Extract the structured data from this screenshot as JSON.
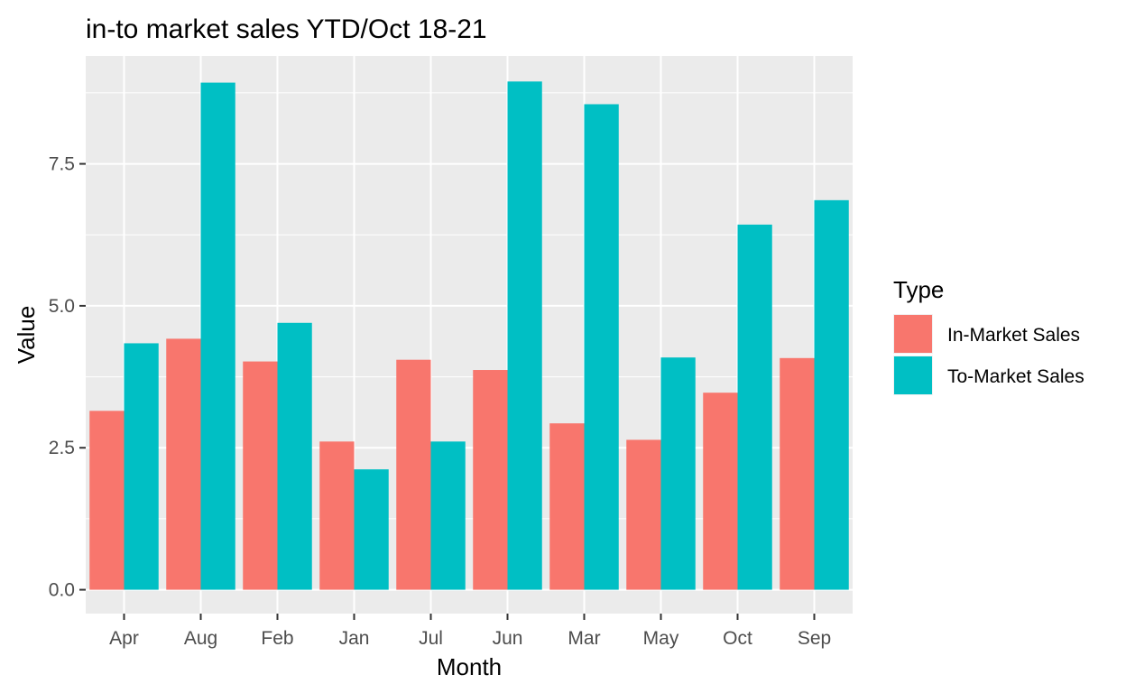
{
  "chart_data": {
    "type": "bar",
    "title": "in-to market sales YTD/Oct 18-21",
    "xlabel": "Month",
    "ylabel": "Value",
    "categories": [
      "Apr",
      "Aug",
      "Feb",
      "Jan",
      "Jul",
      "Jun",
      "Mar",
      "May",
      "Oct",
      "Sep"
    ],
    "series": [
      {
        "name": "In-Market Sales",
        "color": "#F8766D",
        "values": [
          3.15,
          4.42,
          4.02,
          2.61,
          4.05,
          3.87,
          2.93,
          2.64,
          3.47,
          4.08
        ]
      },
      {
        "name": "To-Market Sales",
        "color": "#00BFC4",
        "values": [
          4.34,
          8.93,
          4.7,
          2.12,
          2.61,
          8.95,
          8.55,
          4.09,
          6.43,
          6.86
        ]
      }
    ],
    "ylim": [
      -0.42,
      9.4
    ],
    "yticks": [
      0,
      2.5,
      5,
      7.5
    ],
    "ytick_labels": [
      "0.0",
      "2.5",
      "5.0",
      "7.5"
    ],
    "grid": true,
    "legend": {
      "title": "Type",
      "position": "right"
    },
    "panel_background": "#EBEBEB"
  }
}
